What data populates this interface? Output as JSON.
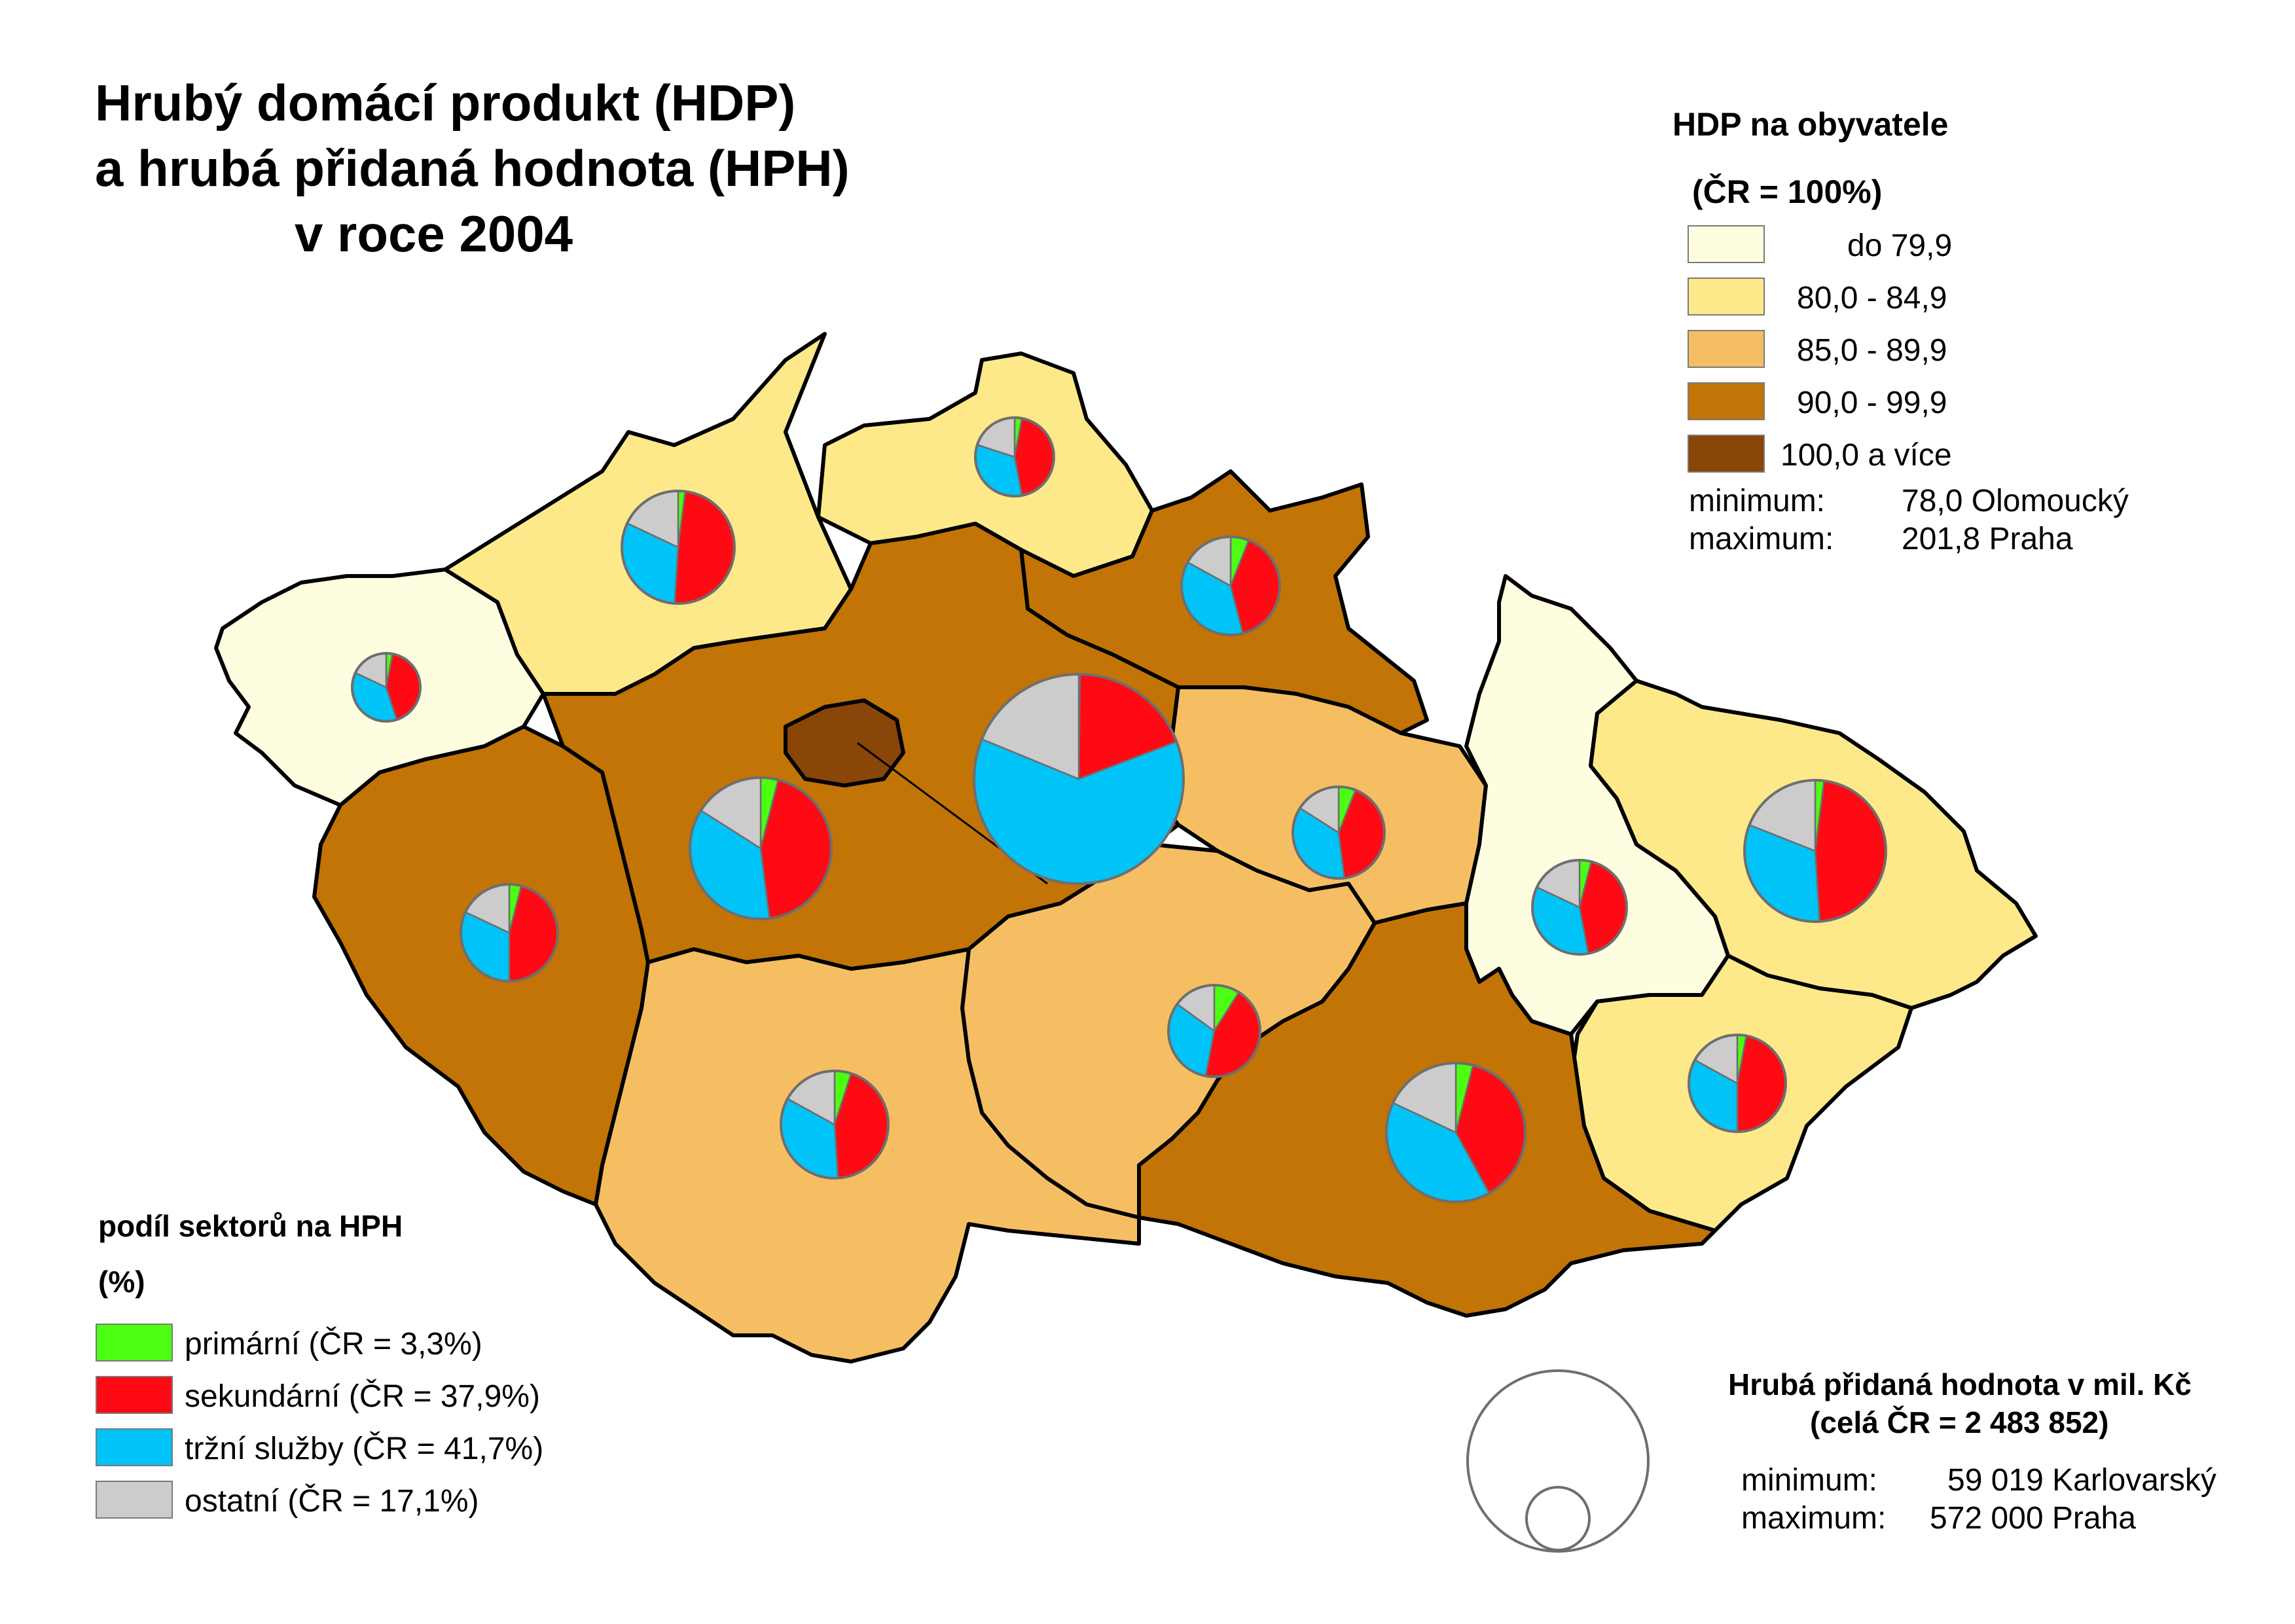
{
  "title": {
    "line1": "Hrubý domácí produkt (HDP)",
    "line2": "a hrubá přidaná hodnota (HPH)",
    "line3": "v roce 2004"
  },
  "gdp_legend": {
    "heading": "HDP na obyvatele",
    "subheading": "(ČR = 100%)",
    "classes": [
      {
        "label": "do 79,9",
        "color": "#FFFDE0"
      },
      {
        "label": "80,0 - 84,9",
        "color": "#FDE98A"
      },
      {
        "label": "85,0 - 89,9",
        "color": "#F6BE62"
      },
      {
        "label": "90,0 - 99,9",
        "color": "#C27406"
      },
      {
        "label": "100,0 a více",
        "color": "#8A4508"
      }
    ],
    "minimum_label": "minimum:",
    "minimum_value": "78,0 Olomoucký",
    "maximum_label": "maximum:",
    "maximum_value": "201,8 Praha"
  },
  "sector_legend": {
    "heading": "podíl sektorů na HPH",
    "subheading": "(%)",
    "sectors": [
      {
        "label": "primární (ČR = 3,3%)",
        "color": "#4CFF12"
      },
      {
        "label": "sekundární (ČR = 37,9%)",
        "color": "#FF0A14"
      },
      {
        "label": "tržní služby (ČR = 41,7%)",
        "color": "#00C3F8"
      },
      {
        "label": "ostatní (ČR = 17,1%)",
        "color": "#CCCCCC"
      }
    ]
  },
  "size_legend": {
    "heading": "Hrubá přidaná hodnota v mil. Kč",
    "subheading": "(celá ČR = 2 483 852)",
    "minimum_label": "minimum:",
    "minimum_value": "59 019 Karlovarský",
    "maximum_label": "maximum:",
    "maximum_value": "572 000 Praha"
  },
  "colors": {
    "border": "#000000",
    "pie_outline": "#6E6E6E",
    "primary": "#4CFF12",
    "secondary": "#FF0A14",
    "market": "#00C3F8",
    "other": "#CCCCCC"
  }
}
